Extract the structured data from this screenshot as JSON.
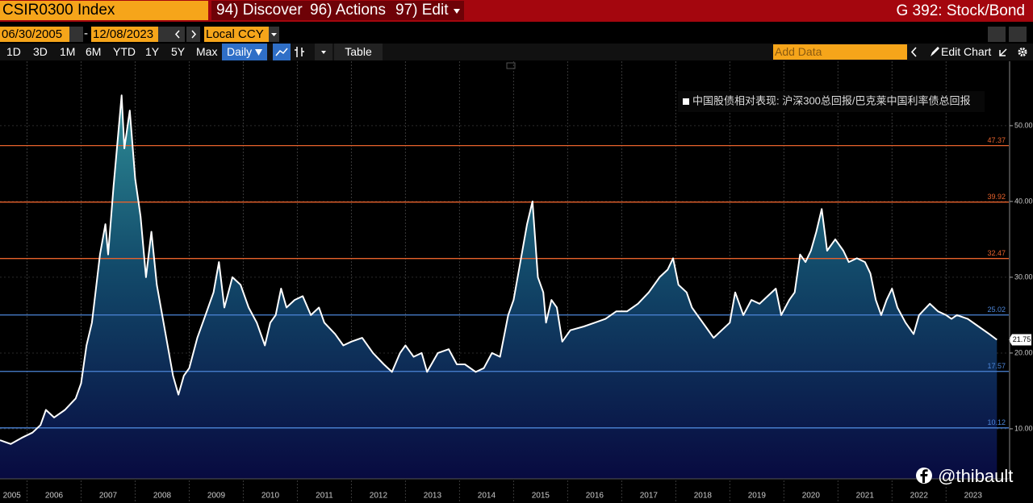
{
  "ui": {
    "security": "CSIR0300 Index",
    "menus": [
      "94) Discover",
      "96) Actions",
      "97) Edit"
    ],
    "function": "G 392: Stock/Bond",
    "start_date": "06/30/2005",
    "date_separator": "-",
    "end_date": "12/08/2023",
    "currency": "Local CCY",
    "periods": [
      "1D",
      "3D",
      "1M",
      "6M",
      "YTD",
      "1Y",
      "5Y",
      "Max"
    ],
    "frequency": "Daily",
    "table": "Table",
    "add_data": "Add Data",
    "edit_chart": "Edit Chart",
    "watermark": "@thibault"
  },
  "chart_data": {
    "type": "area",
    "series": [
      {
        "name": "中国股债相对表现: 沪深300总回报/巴克莱中国利率债总回报",
        "color": "#ffffff",
        "x": [
          2005.5,
          2005.7,
          2005.9,
          2006.1,
          2006.25,
          2006.35,
          2006.5,
          2006.7,
          2006.9,
          2007.0,
          2007.1,
          2007.2,
          2007.35,
          2007.45,
          2007.5,
          2007.6,
          2007.7,
          2007.75,
          2007.8,
          2007.9,
          2008.0,
          2008.1,
          2008.2,
          2008.3,
          2008.4,
          2008.5,
          2008.6,
          2008.7,
          2008.8,
          2008.9,
          2009.0,
          2009.15,
          2009.3,
          2009.45,
          2009.55,
          2009.65,
          2009.8,
          2009.95,
          2010.1,
          2010.25,
          2010.4,
          2010.5,
          2010.6,
          2010.7,
          2010.8,
          2010.95,
          2011.1,
          2011.25,
          2011.4,
          2011.5,
          2011.7,
          2011.85,
          2012.0,
          2012.2,
          2012.4,
          2012.6,
          2012.75,
          2012.9,
          2013.0,
          2013.15,
          2013.3,
          2013.4,
          2013.6,
          2013.8,
          2013.95,
          2014.1,
          2014.3,
          2014.45,
          2014.6,
          2014.75,
          2014.9,
          2015.0,
          2015.1,
          2015.25,
          2015.35,
          2015.45,
          2015.55,
          2015.6,
          2015.7,
          2015.8,
          2015.9,
          2016.05,
          2016.3,
          2016.5,
          2016.7,
          2016.9,
          2017.1,
          2017.3,
          2017.5,
          2017.7,
          2017.85,
          2017.95,
          2018.05,
          2018.2,
          2018.3,
          2018.4,
          2018.55,
          2018.7,
          2018.85,
          2019.0,
          2019.1,
          2019.25,
          2019.4,
          2019.55,
          2019.7,
          2019.85,
          2019.95,
          2020.1,
          2020.2,
          2020.3,
          2020.4,
          2020.5,
          2020.6,
          2020.7,
          2020.8,
          2020.95,
          2021.1,
          2021.2,
          2021.35,
          2021.5,
          2021.6,
          2021.7,
          2021.8,
          2021.9,
          2022.0,
          2022.1,
          2022.25,
          2022.4,
          2022.5,
          2022.7,
          2022.85,
          2023.0,
          2023.1,
          2023.2,
          2023.4,
          2023.6,
          2023.8,
          2023.94
        ],
        "values": [
          8.5,
          8.0,
          8.8,
          9.5,
          10.5,
          12.5,
          11.5,
          12.5,
          14,
          16,
          21,
          24,
          33,
          37,
          33,
          42,
          50,
          54,
          47,
          52,
          43,
          38,
          30,
          36,
          29,
          25,
          21,
          17,
          14.5,
          17,
          18,
          22,
          25,
          28,
          32,
          26,
          30,
          29,
          26,
          24,
          21,
          24,
          25,
          28.5,
          26,
          27,
          27.5,
          25,
          26,
          24,
          22.5,
          21,
          21.5,
          22,
          20,
          18.5,
          17.5,
          20,
          21,
          19.5,
          20,
          17.5,
          20,
          20.5,
          18.5,
          18.5,
          17.5,
          18,
          20,
          19.5,
          25,
          27,
          31,
          37,
          40,
          30,
          28,
          24,
          27,
          26,
          21.5,
          23,
          23.5,
          24,
          24.5,
          25.5,
          25.5,
          26.5,
          28,
          30,
          31,
          32.5,
          29,
          28,
          26,
          25,
          23.5,
          22,
          23,
          24,
          28,
          25,
          27,
          26.5,
          27.5,
          28.5,
          25,
          27,
          28,
          33,
          32,
          33.5,
          36,
          39,
          33.5,
          35,
          33.5,
          32,
          32.5,
          32,
          30.5,
          27,
          25,
          27,
          28.5,
          26,
          24,
          22.5,
          25,
          26.5,
          25.5,
          25,
          24.5,
          25,
          24.5,
          23.5,
          22.5,
          21.75
        ]
      }
    ],
    "xlim": [
      2005.5,
      2024.16
    ],
    "ylim": [
      3.4,
      58.5
    ],
    "xticks": [
      {
        "value": 2005.72,
        "label": "2005"
      },
      {
        "value": 2006.5,
        "label": "2006"
      },
      {
        "value": 2007.5,
        "label": "2007"
      },
      {
        "value": 2008.5,
        "label": "2008"
      },
      {
        "value": 2009.5,
        "label": "2009"
      },
      {
        "value": 2010.5,
        "label": "2010"
      },
      {
        "value": 2011.5,
        "label": "2011"
      },
      {
        "value": 2012.5,
        "label": "2012"
      },
      {
        "value": 2013.5,
        "label": "2013"
      },
      {
        "value": 2014.5,
        "label": "2014"
      },
      {
        "value": 2015.5,
        "label": "2015"
      },
      {
        "value": 2016.5,
        "label": "2016"
      },
      {
        "value": 2017.5,
        "label": "2017"
      },
      {
        "value": 2018.5,
        "label": "2018"
      },
      {
        "value": 2019.5,
        "label": "2019"
      },
      {
        "value": 2020.5,
        "label": "2020"
      },
      {
        "value": 2021.5,
        "label": "2021"
      },
      {
        "value": 2022.5,
        "label": "2022"
      },
      {
        "value": 2023.5,
        "label": "2023"
      }
    ],
    "xgrid": [
      2006,
      2007,
      2008,
      2009,
      2010,
      2011,
      2012,
      2013,
      2014,
      2015,
      2016,
      2017,
      2018,
      2019,
      2020,
      2021,
      2022,
      2023
    ],
    "yticks": [
      {
        "value": 10,
        "label": "10.00"
      },
      {
        "value": 20,
        "label": "20.00"
      },
      {
        "value": 30,
        "label": "30.00"
      },
      {
        "value": 40,
        "label": "40.00"
      },
      {
        "value": 50,
        "label": "50.00"
      }
    ],
    "hlines": [
      {
        "value": 47.37,
        "label": "47.37",
        "color": "#e8622c"
      },
      {
        "value": 39.92,
        "label": "39.92",
        "color": "#e8622c"
      },
      {
        "value": 32.47,
        "label": "32.47",
        "color": "#e8622c"
      },
      {
        "value": 25.02,
        "label": "25.02",
        "color": "#4d86d8"
      },
      {
        "value": 17.57,
        "label": "17.57",
        "color": "#4d86d8"
      },
      {
        "value": 10.12,
        "label": "10.12",
        "color": "#4d86d8"
      }
    ],
    "grid": true
  }
}
